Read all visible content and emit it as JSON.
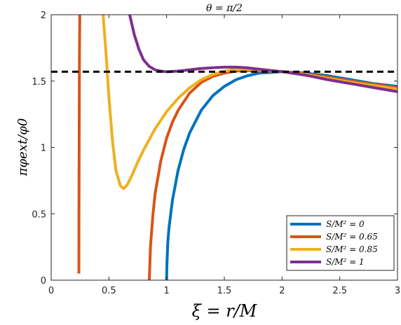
{
  "chart_data": {
    "type": "line",
    "title": "θ = π/2",
    "xlabel": "ξ = r/M",
    "ylabel": "πφext/φ0",
    "xlim": [
      0,
      3
    ],
    "ylim": [
      0,
      2
    ],
    "xticks": [
      "0",
      "0.5",
      "1",
      "1.5",
      "2",
      "2.5",
      "3"
    ],
    "yticks": [
      "0",
      "0.5",
      "1",
      "1.5",
      "2"
    ],
    "grid": false,
    "legend_position": "bottom-right",
    "reference_line": {
      "y": 1.5708,
      "style": "dashed",
      "color": "#000000"
    },
    "series": [
      {
        "name": "S/M² = 0",
        "color": "#0072BD",
        "x": [
          1.0,
          1.002,
          1.01,
          1.02,
          1.05,
          1.1,
          1.15,
          1.2,
          1.3,
          1.4,
          1.5,
          1.6,
          1.7,
          1.8,
          1.9,
          2.0,
          2.2,
          2.4,
          2.6,
          2.8,
          3.0
        ],
        "y": [
          0.0,
          0.1,
          0.28,
          0.39,
          0.6,
          0.83,
          0.99,
          1.11,
          1.28,
          1.39,
          1.46,
          1.51,
          1.54,
          1.56,
          1.565,
          1.5708,
          1.56,
          1.54,
          1.51,
          1.48,
          1.46
        ]
      },
      {
        "name": "S/M² = 0.65",
        "color": "#D95319",
        "x": [
          0.24,
          0.241,
          0.243,
          0.245,
          0.248,
          0.85,
          0.855,
          0.86,
          0.88,
          0.9,
          0.95,
          1.0,
          1.05,
          1.1,
          1.2,
          1.3,
          1.4,
          1.5,
          1.6,
          1.7,
          1.8,
          1.9,
          2.0,
          2.2,
          2.4,
          2.6,
          2.8,
          3.0
        ],
        "y": [
          0.05,
          0.6,
          1.2,
          1.7,
          2.0,
          0.0,
          0.12,
          0.25,
          0.48,
          0.65,
          0.9,
          1.07,
          1.19,
          1.28,
          1.41,
          1.49,
          1.535,
          1.56,
          1.575,
          1.58,
          1.578,
          1.575,
          1.5708,
          1.555,
          1.53,
          1.5,
          1.475,
          1.45
        ]
      },
      {
        "name": "S/M² = 0.85",
        "color": "#EDB120",
        "x": [
          0.45,
          0.48,
          0.5,
          0.53,
          0.56,
          0.6,
          0.63,
          0.66,
          0.7,
          0.75,
          0.8,
          0.9,
          1.0,
          1.1,
          1.2,
          1.3,
          1.4,
          1.5,
          1.6,
          1.7,
          1.8,
          1.9,
          2.0,
          2.2,
          2.4,
          2.6,
          2.8,
          3.0
        ],
        "y": [
          2.0,
          1.65,
          1.38,
          1.06,
          0.83,
          0.71,
          0.69,
          0.72,
          0.79,
          0.89,
          0.98,
          1.14,
          1.27,
          1.37,
          1.45,
          1.51,
          1.55,
          1.575,
          1.588,
          1.59,
          1.585,
          1.578,
          1.5708,
          1.55,
          1.52,
          1.49,
          1.465,
          1.44
        ]
      },
      {
        "name": "S/M² = 1",
        "color": "#7E2F8E",
        "x": [
          0.68,
          0.72,
          0.76,
          0.8,
          0.85,
          0.9,
          0.95,
          1.0,
          1.1,
          1.2,
          1.3,
          1.4,
          1.5,
          1.6,
          1.7,
          1.8,
          1.9,
          2.0,
          2.2,
          2.4,
          2.6,
          2.8,
          3.0
        ],
        "y": [
          2.0,
          1.85,
          1.74,
          1.66,
          1.61,
          1.585,
          1.575,
          1.57,
          1.575,
          1.585,
          1.595,
          1.6,
          1.605,
          1.605,
          1.6,
          1.59,
          1.58,
          1.5708,
          1.545,
          1.51,
          1.48,
          1.45,
          1.42
        ]
      }
    ]
  }
}
